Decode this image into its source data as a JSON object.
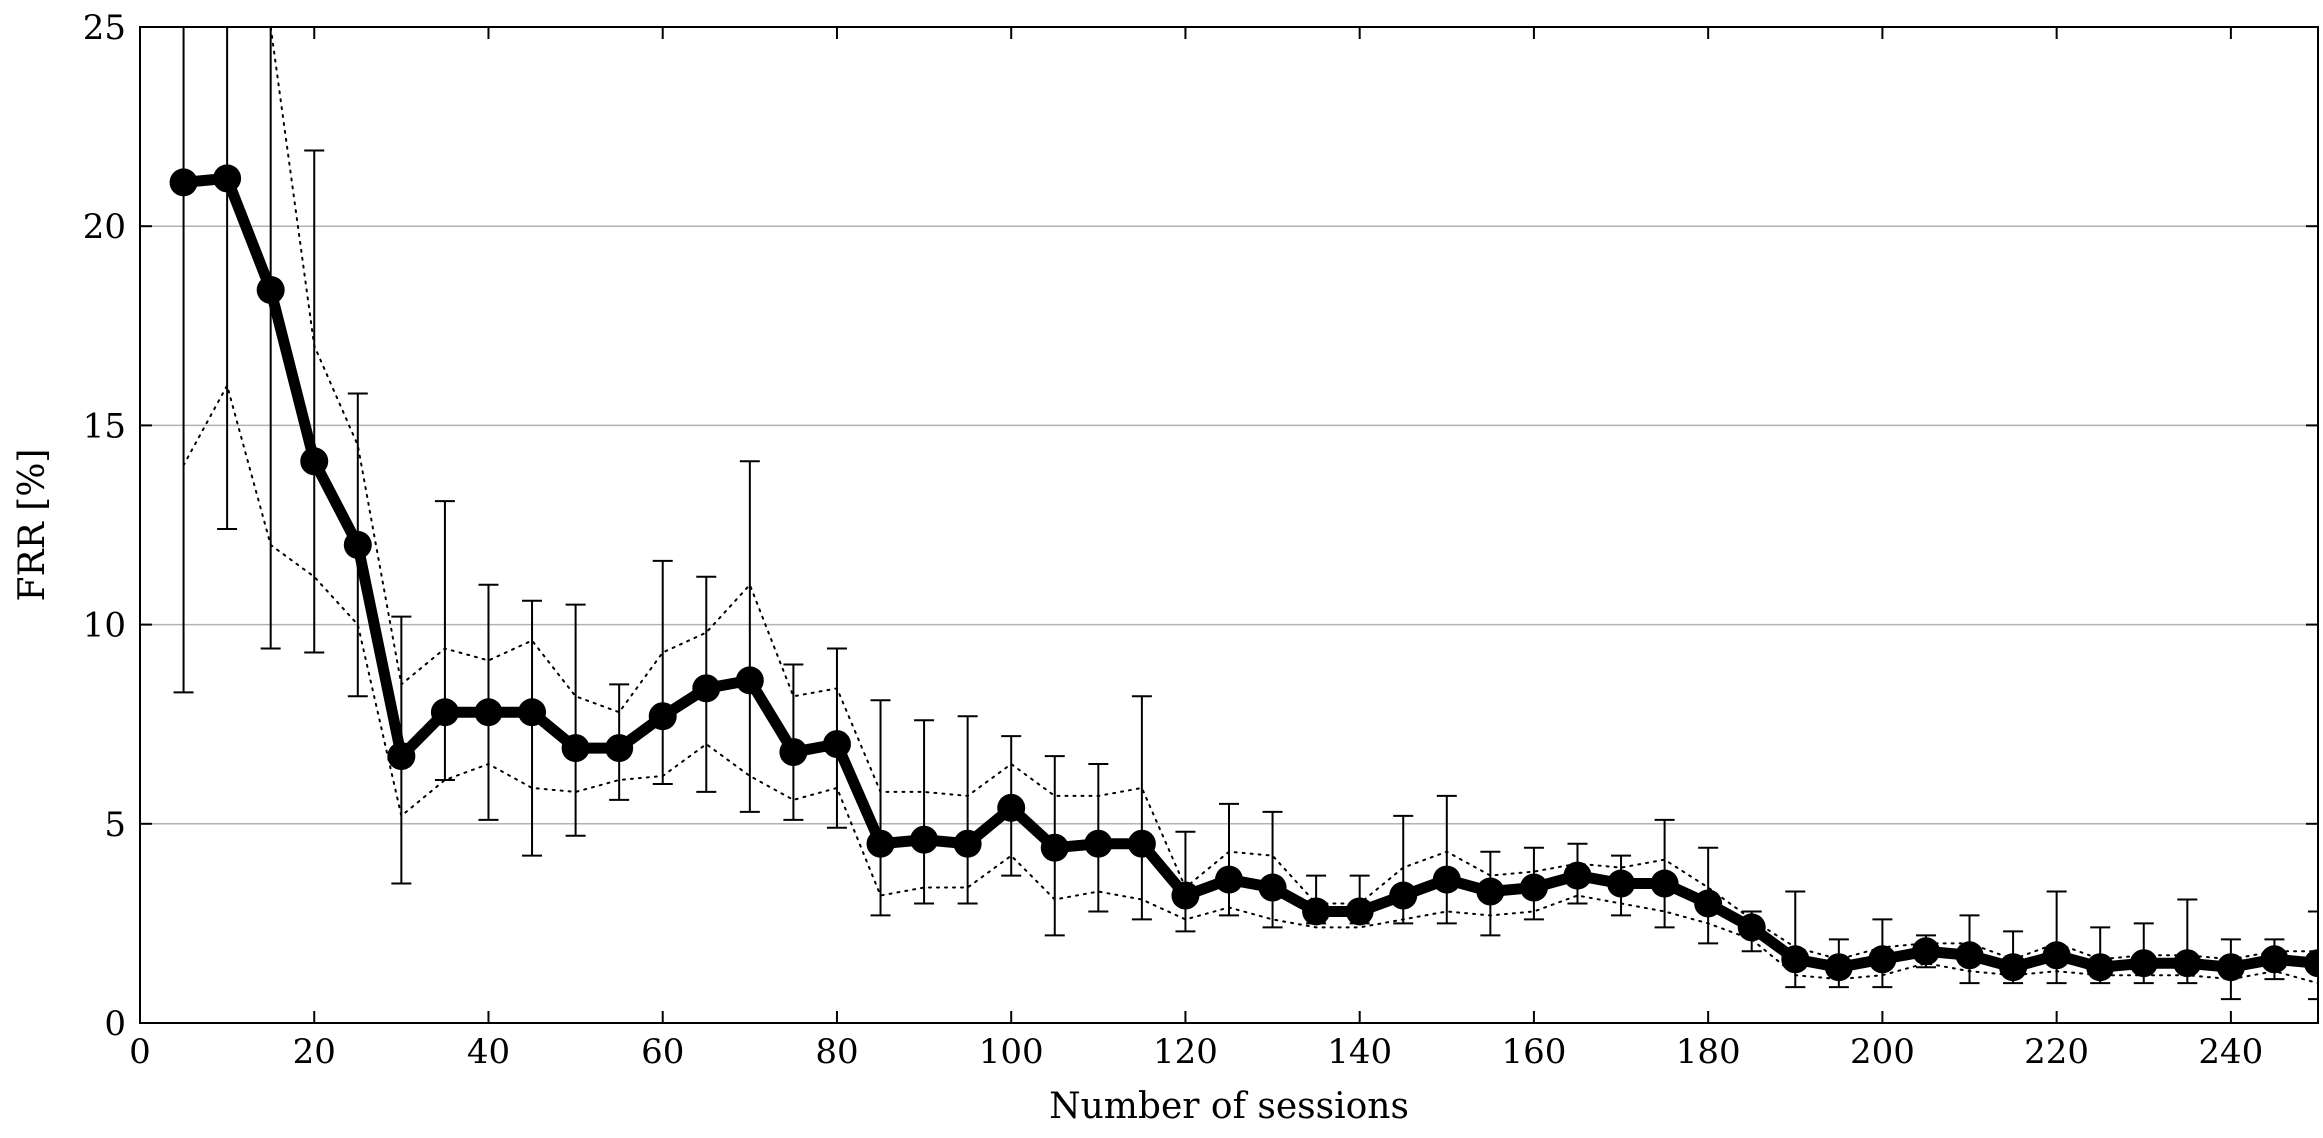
{
  "chart_data": {
    "type": "line",
    "title": "",
    "xlabel": "Number of sessions",
    "ylabel": "FRR [%]",
    "xlim": [
      0,
      250
    ],
    "ylim": [
      0,
      25
    ],
    "x_ticks": [
      0,
      20,
      40,
      60,
      80,
      100,
      120,
      140,
      160,
      180,
      200,
      220,
      240
    ],
    "y_ticks": [
      0,
      5,
      10,
      15,
      20,
      25
    ],
    "grid": "horizontal",
    "legend": "none",
    "series": [
      {
        "style": "solid thick line with filled circle markers",
        "color": "#000000",
        "x": [
          5,
          10,
          15,
          20,
          25,
          30,
          35,
          40,
          45,
          50,
          55,
          60,
          65,
          70,
          75,
          80,
          85,
          90,
          95,
          100,
          105,
          110,
          115,
          120,
          125,
          130,
          135,
          140,
          145,
          150,
          155,
          160,
          165,
          170,
          175,
          180,
          185,
          190,
          195,
          200,
          205,
          210,
          215,
          220,
          225,
          230,
          235,
          240,
          245,
          250
        ],
        "y": [
          21.1,
          21.2,
          18.4,
          14.1,
          12.0,
          6.7,
          7.8,
          7.8,
          7.8,
          6.9,
          6.9,
          7.7,
          8.4,
          8.6,
          6.8,
          7.0,
          4.5,
          4.6,
          4.5,
          5.4,
          4.4,
          4.5,
          4.5,
          3.2,
          3.6,
          3.4,
          2.8,
          2.8,
          3.2,
          3.6,
          3.3,
          3.4,
          3.7,
          3.5,
          3.5,
          3.0,
          2.4,
          1.6,
          1.4,
          1.6,
          1.8,
          1.7,
          1.4,
          1.7,
          1.4,
          1.5,
          1.5,
          1.4,
          1.6,
          1.5
        ],
        "error_low": [
          8.3,
          12.4,
          9.4,
          9.3,
          8.2,
          3.5,
          6.1,
          5.1,
          4.2,
          4.7,
          5.6,
          6.0,
          5.8,
          5.3,
          5.1,
          4.9,
          2.7,
          3.0,
          3.0,
          3.7,
          2.2,
          2.8,
          2.6,
          2.3,
          2.7,
          2.4,
          2.5,
          2.5,
          2.5,
          2.5,
          2.2,
          2.6,
          3.0,
          2.7,
          2.4,
          2.0,
          1.8,
          0.9,
          0.9,
          0.9,
          1.4,
          1.0,
          1.0,
          1.0,
          1.0,
          1.0,
          1.0,
          0.6,
          1.1,
          0.6
        ],
        "error_high": [
          25.0,
          25.0,
          25.0,
          21.9,
          15.8,
          10.2,
          13.1,
          11.0,
          10.6,
          10.5,
          8.5,
          11.6,
          11.2,
          14.1,
          9.0,
          9.4,
          8.1,
          7.6,
          7.7,
          7.2,
          6.7,
          6.5,
          8.2,
          4.8,
          5.5,
          5.3,
          3.7,
          3.7,
          5.2,
          5.7,
          4.3,
          4.4,
          4.5,
          4.2,
          5.1,
          4.4,
          2.8,
          3.3,
          2.1,
          2.6,
          2.2,
          2.7,
          2.3,
          3.3,
          2.4,
          2.5,
          3.1,
          2.1,
          2.1,
          2.8
        ]
      },
      {
        "style": "dotted thin line (upper band)",
        "color": "#000000",
        "x": [
          5,
          10,
          15,
          20,
          25,
          30,
          35,
          40,
          45,
          50,
          55,
          60,
          65,
          70,
          75,
          80,
          85,
          90,
          95,
          100,
          105,
          110,
          115,
          120,
          125,
          130,
          135,
          140,
          145,
          150,
          155,
          160,
          165,
          170,
          175,
          180,
          185,
          190,
          195,
          200,
          205,
          210,
          215,
          220,
          225,
          230,
          235,
          240,
          245,
          250
        ],
        "y": [
          25.0,
          25.0,
          25.0,
          17.0,
          14.5,
          8.5,
          9.4,
          9.1,
          9.6,
          8.2,
          7.8,
          9.3,
          9.8,
          11.0,
          8.2,
          8.4,
          5.8,
          5.8,
          5.7,
          6.5,
          5.7,
          5.7,
          5.9,
          3.4,
          4.3,
          4.2,
          3.0,
          3.0,
          3.9,
          4.3,
          3.7,
          3.8,
          4.0,
          3.9,
          4.1,
          3.4,
          2.6,
          1.9,
          1.6,
          1.9,
          2.0,
          2.0,
          1.6,
          2.0,
          1.6,
          1.7,
          1.7,
          1.6,
          1.8,
          1.8
        ]
      },
      {
        "style": "dotted thin line (lower band)",
        "color": "#000000",
        "x": [
          5,
          10,
          15,
          20,
          25,
          30,
          35,
          40,
          45,
          50,
          55,
          60,
          65,
          70,
          75,
          80,
          85,
          90,
          95,
          100,
          105,
          110,
          115,
          120,
          125,
          130,
          135,
          140,
          145,
          150,
          155,
          160,
          165,
          170,
          175,
          180,
          185,
          190,
          195,
          200,
          205,
          210,
          215,
          220,
          225,
          230,
          235,
          240,
          245,
          250
        ],
        "y": [
          14.0,
          16.0,
          12.0,
          11.2,
          10.0,
          5.2,
          6.1,
          6.5,
          5.9,
          5.8,
          6.1,
          6.2,
          7.0,
          6.2,
          5.6,
          5.9,
          3.2,
          3.4,
          3.4,
          4.2,
          3.1,
          3.3,
          3.1,
          2.6,
          2.9,
          2.6,
          2.4,
          2.4,
          2.6,
          2.8,
          2.7,
          2.8,
          3.2,
          3.0,
          2.8,
          2.5,
          2.1,
          1.2,
          1.1,
          1.2,
          1.5,
          1.3,
          1.2,
          1.3,
          1.2,
          1.2,
          1.2,
          1.1,
          1.3,
          1.0
        ]
      }
    ]
  }
}
